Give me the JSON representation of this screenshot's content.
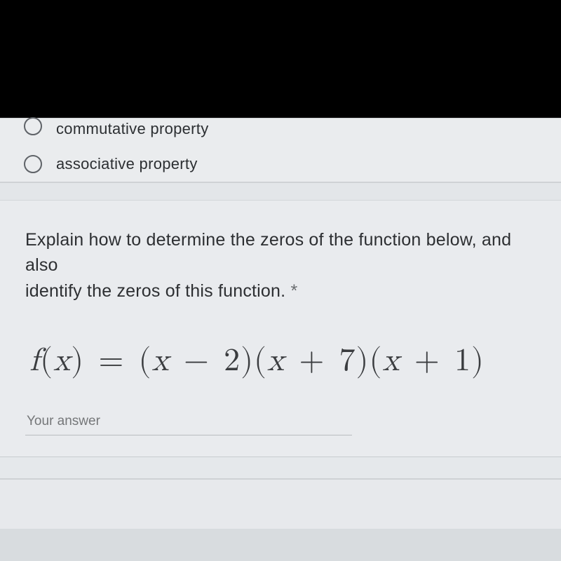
{
  "radios": {
    "option1": "commutative property",
    "option2": "associative property"
  },
  "question": {
    "line1": "Explain how to determine the zeros of the function below, and also",
    "line2": "identify the zeros of this function.",
    "required_marker": " *"
  },
  "equation": {
    "lhs_f": "f",
    "lhs_open": "(",
    "lhs_x": "x",
    "lhs_close": ")",
    "eq": " = ",
    "g1_open": " (",
    "g1_x": "x",
    "g1_op": " − ",
    "g1_n": "2",
    "g1_close": ")",
    "g2_open": "(",
    "g2_x": "x",
    "g2_op": " + ",
    "g2_n": "7",
    "g2_close": ")",
    "g3_open": "(",
    "g3_x": "x",
    "g3_op": " + ",
    "g3_n": "1",
    "g3_close": ")"
  },
  "answer": {
    "placeholder": "Your answer"
  },
  "colors": {
    "black": "#000000",
    "page_bg": "#e6e8eb",
    "text_primary": "#2d2f32",
    "text_muted": "#757779",
    "radio_border": "#5f6368",
    "underline": "#b9bcbf",
    "divider": "#cfd2d5"
  }
}
